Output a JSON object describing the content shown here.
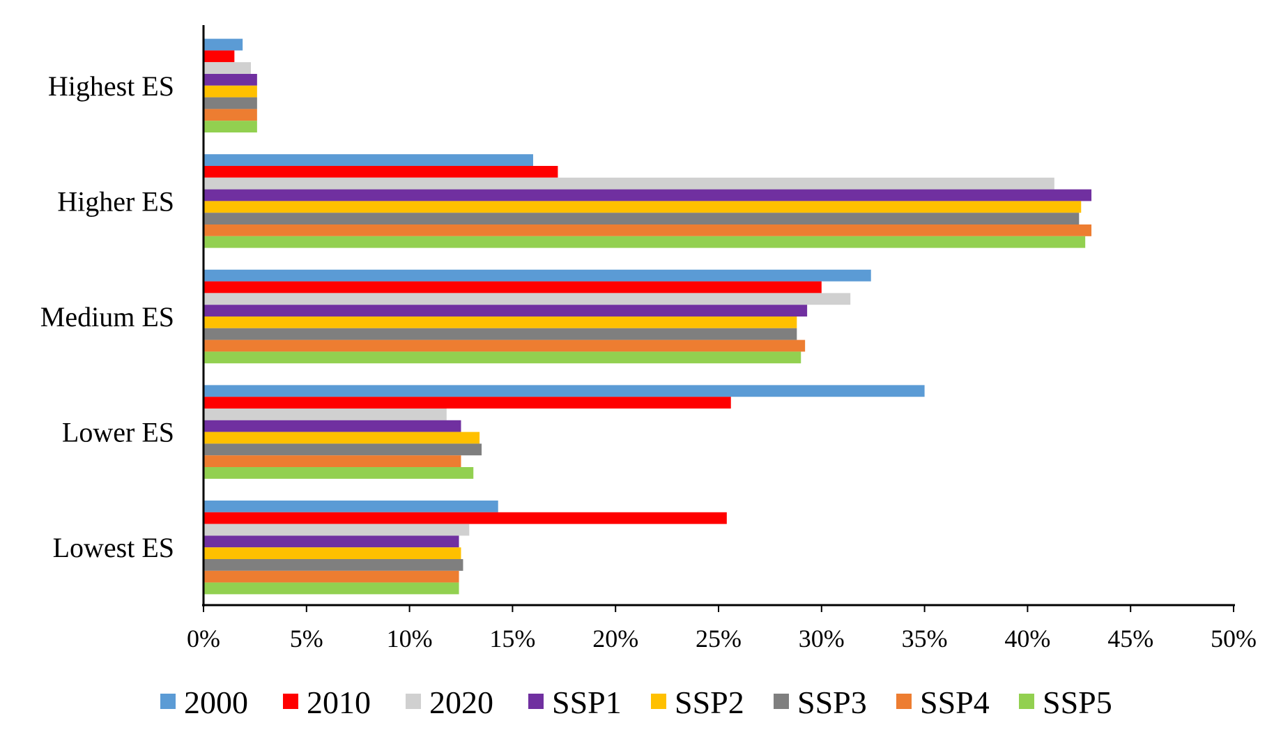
{
  "chart_data": {
    "type": "bar",
    "orientation": "horizontal",
    "title": "",
    "xlabel": "",
    "ylabel": "",
    "xlim": [
      0,
      50
    ],
    "grid": false,
    "legend_position": "bottom",
    "categories": [
      "Highest ES",
      "Higher ES",
      "Medium ES",
      "Lower ES",
      "Lowest ES"
    ],
    "x_ticks": [
      "0%",
      "5%",
      "10%",
      "15%",
      "20%",
      "25%",
      "30%",
      "35%",
      "40%",
      "45%",
      "50%"
    ],
    "series": [
      {
        "name": "2000",
        "color": "#5B9BD5",
        "values": [
          1.9,
          16.0,
          32.4,
          35.0,
          14.3
        ]
      },
      {
        "name": "2010",
        "color": "#FF0000",
        "values": [
          1.5,
          17.2,
          30.0,
          25.6,
          25.4
        ]
      },
      {
        "name": "2020",
        "color": "#D0D0D0",
        "values": [
          2.3,
          41.3,
          31.4,
          11.8,
          12.9
        ]
      },
      {
        "name": "SSP1",
        "color": "#7030A0",
        "values": [
          2.6,
          43.1,
          29.3,
          12.5,
          12.4
        ]
      },
      {
        "name": "SSP2",
        "color": "#FFC000",
        "values": [
          2.6,
          42.6,
          28.8,
          13.4,
          12.5
        ]
      },
      {
        "name": "SSP3",
        "color": "#7F7F7F",
        "values": [
          2.6,
          42.5,
          28.8,
          13.5,
          12.6
        ]
      },
      {
        "name": "SSP4",
        "color": "#ED7D31",
        "values": [
          2.6,
          43.1,
          29.2,
          12.5,
          12.4
        ]
      },
      {
        "name": "SSP5",
        "color": "#92D050",
        "values": [
          2.6,
          42.8,
          29.0,
          13.1,
          12.4
        ]
      }
    ]
  }
}
